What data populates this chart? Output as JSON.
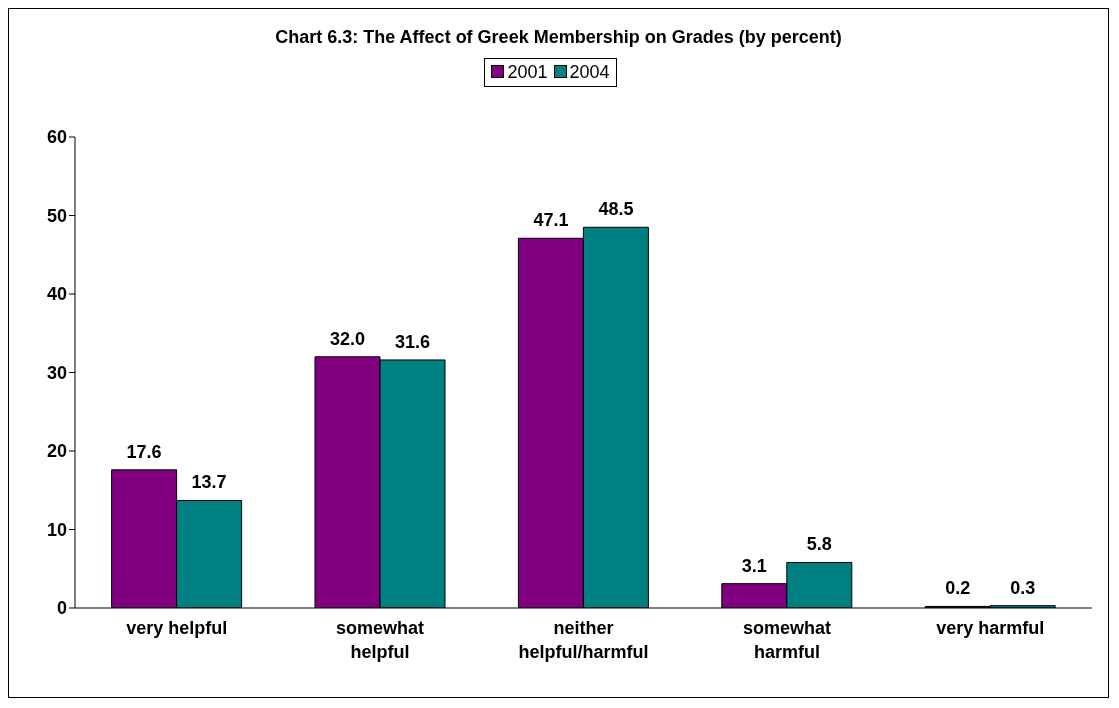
{
  "chart_data": {
    "type": "bar",
    "title": "Chart 6.3: The Affect of Greek Membership on Grades (by percent)",
    "categories": [
      "very helpful",
      "somewhat helpful",
      "neither helpful/harmful",
      "somewhat harmful",
      "very harmful"
    ],
    "series": [
      {
        "name": "2001",
        "color": "#800080",
        "values": [
          17.6,
          32.0,
          47.1,
          3.1,
          0.2
        ],
        "value_labels": [
          "17.6",
          "32.0",
          "47.1",
          "3.1",
          "0.2"
        ]
      },
      {
        "name": "2004",
        "color": "#008080",
        "values": [
          13.7,
          31.6,
          48.5,
          5.8,
          0.3
        ],
        "value_labels": [
          "13.7",
          "31.6",
          "48.5",
          "5.8",
          "0.3"
        ]
      }
    ],
    "ylim": [
      0,
      60
    ],
    "yticks": [
      0,
      10,
      20,
      30,
      40,
      50,
      60
    ],
    "grid": false,
    "legend": "top"
  }
}
